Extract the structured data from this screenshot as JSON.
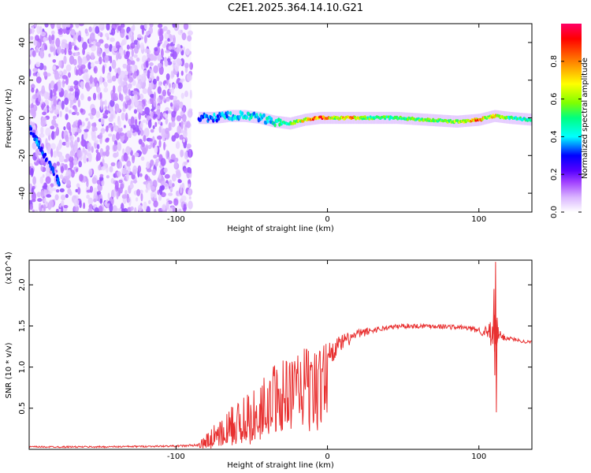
{
  "title": "C2E1.2025.364.14.10.G21",
  "chart_data": [
    {
      "type": "heatmap",
      "name": "spectrogram",
      "xlabel": "Height of straight line (km)",
      "ylabel": "Frequency (Hz)",
      "xlim": [
        -197,
        135
      ],
      "ylim": [
        -50,
        50
      ],
      "xticks": [
        -100,
        0,
        100
      ],
      "xtick_labels": [
        "-100",
        "0",
        "100"
      ],
      "yticks": [
        -40,
        -20,
        0,
        20,
        40
      ],
      "ytick_labels": [
        "-40",
        "-20",
        "0",
        "20",
        "40"
      ],
      "colorbar": {
        "label": "Normalized spectral amplitude",
        "range": [
          0,
          1
        ],
        "ticks": [
          0.0,
          0.2,
          0.4,
          0.6,
          0.8
        ],
        "tick_labels": [
          "0.0",
          "0.2",
          "0.4",
          "0.6",
          "0.8"
        ],
        "colormap": [
          "#ffffff",
          "#d9b3ff",
          "#a040ff",
          "#5500ff",
          "#0000ff",
          "#00ffff",
          "#00ff80",
          "#80ff00",
          "#ffff00",
          "#ff8000",
          "#ff0000",
          "#ff0066"
        ]
      },
      "signal_trace": {
        "x": [
          -85,
          -75,
          -65,
          -55,
          -45,
          -35,
          -25,
          -15,
          -5,
          5,
          15,
          25,
          45,
          65,
          85,
          100,
          105,
          110,
          120,
          135
        ],
        "y": [
          0,
          0,
          1,
          1,
          0,
          -2,
          -3,
          -1,
          0,
          0,
          0,
          0,
          0,
          -1,
          -2,
          -1,
          0,
          1,
          0,
          -1
        ],
        "amplitude": [
          0.4,
          0.45,
          0.5,
          0.5,
          0.5,
          0.55,
          0.6,
          0.8,
          0.95,
          0.7,
          0.85,
          0.65,
          0.6,
          0.65,
          0.7,
          0.9,
          0.7,
          0.8,
          0.6,
          0.55
        ]
      },
      "early_track": {
        "x": [
          -197,
          -192,
          -187,
          -182,
          -177
        ],
        "y": [
          -5,
          -12,
          -20,
          -27,
          -35
        ],
        "amplitude": [
          0.3,
          0.35,
          0.3,
          0.3,
          0.35
        ]
      },
      "noise_region": {
        "x_range": [
          -197,
          -90
        ],
        "y_range": [
          -50,
          50
        ]
      }
    },
    {
      "type": "line",
      "name": "snr",
      "xlabel": "Height of straight line (km)",
      "ylabel": "SNR (10 * v/v)",
      "y_multiplier": "(x10^4)",
      "xlim": [
        -197,
        135
      ],
      "ylim": [
        0,
        2.3
      ],
      "xticks": [
        -100,
        0,
        100
      ],
      "xtick_labels": [
        "-100",
        "0",
        "100"
      ],
      "yticks": [
        0.5,
        1.0,
        1.5,
        2.0
      ],
      "ytick_labels": [
        "0.5",
        "1.0",
        "1.5",
        "2.0"
      ],
      "color": "#e83030",
      "envelope": {
        "x": [
          -197,
          -150,
          -100,
          -85,
          -78,
          -70,
          -60,
          -50,
          -40,
          -30,
          -20,
          -10,
          0,
          10,
          20,
          30,
          40,
          50,
          60,
          70,
          80,
          90,
          100,
          105,
          108,
          110,
          112,
          115,
          120,
          125,
          130,
          135
        ],
        "y": [
          0.03,
          0.03,
          0.04,
          0.05,
          0.1,
          0.2,
          0.3,
          0.4,
          0.55,
          0.7,
          0.85,
          1.0,
          1.15,
          1.3,
          1.4,
          1.45,
          1.48,
          1.5,
          1.5,
          1.5,
          1.49,
          1.48,
          1.45,
          1.42,
          1.38,
          1.4,
          1.38,
          1.37,
          1.35,
          1.33,
          1.31,
          1.3
        ],
        "noise": [
          0.01,
          0.01,
          0.01,
          0.02,
          0.15,
          0.22,
          0.28,
          0.35,
          0.4,
          0.45,
          0.4,
          0.25,
          0.15,
          0.1,
          0.06,
          0.04,
          0.03,
          0.03,
          0.03,
          0.03,
          0.03,
          0.03,
          0.04,
          0.08,
          0.2,
          0.3,
          0.15,
          0.05,
          0.03,
          0.02,
          0.02,
          0.02
        ]
      },
      "spike": {
        "x": 111,
        "max": 2.28,
        "min": 0.45
      }
    }
  ]
}
